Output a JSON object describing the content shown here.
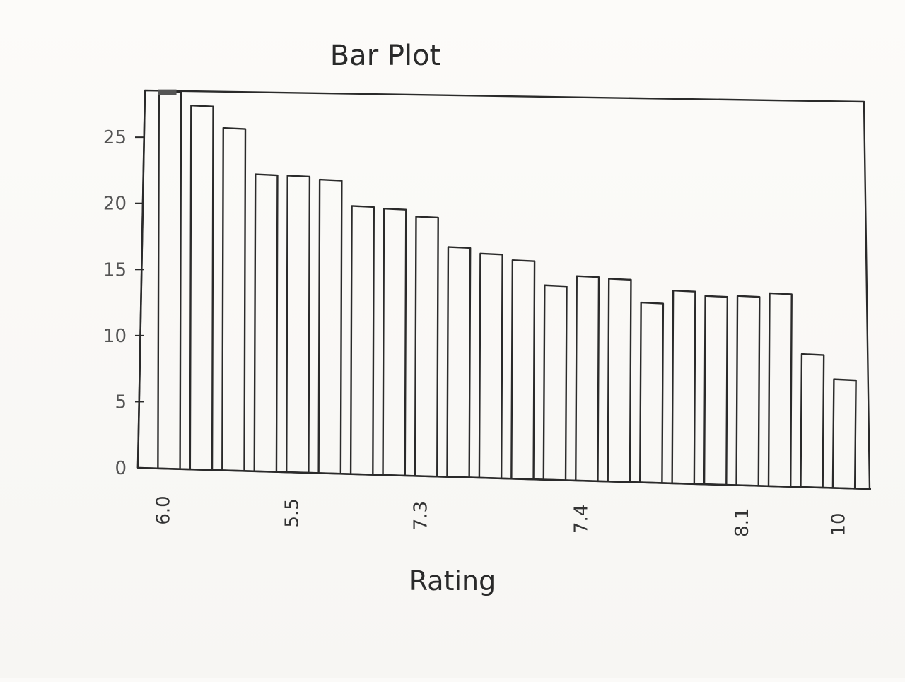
{
  "chart_data": {
    "type": "bar",
    "title": "Bar Plot",
    "xlabel": "Rating",
    "ylabel": "",
    "ylim": [
      0,
      28
    ],
    "y_ticks": [
      "0",
      "5",
      "10",
      "15",
      "20",
      "25"
    ],
    "x_tick_labels": [
      "6.0",
      "5.5",
      "7.3",
      "7.4",
      "8.1",
      "10"
    ],
    "values": [
      28.5,
      27.4,
      25.7,
      22.2,
      22.1,
      21.8,
      19.8,
      19.6,
      19.0,
      16.7,
      16.2,
      15.7,
      13.8,
      14.5,
      14.3,
      12.5,
      13.4,
      13.0,
      13.0,
      13.2,
      8.6,
      6.7
    ],
    "grid": false,
    "legend": "none",
    "colors": {
      "ink": "#2a2a2a",
      "paper": "#fbfaf8",
      "corner_mark": "#555555"
    }
  }
}
